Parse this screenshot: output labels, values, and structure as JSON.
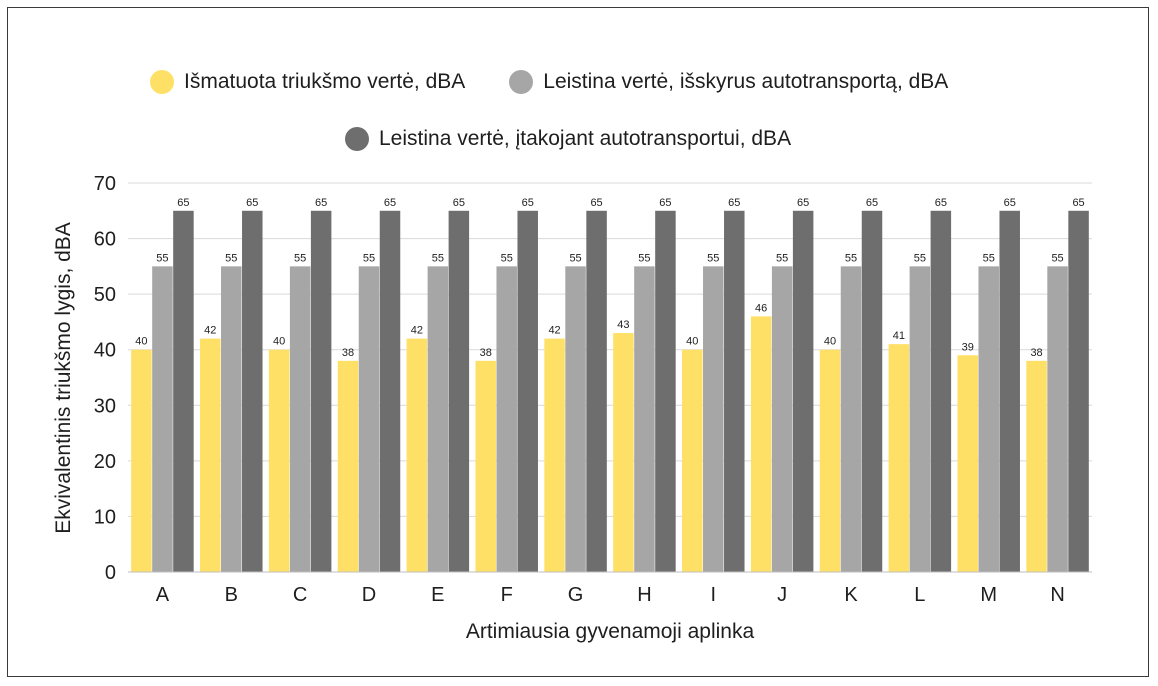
{
  "chart_data": {
    "type": "bar",
    "categories": [
      "A",
      "B",
      "C",
      "D",
      "E",
      "F",
      "G",
      "H",
      "I",
      "J",
      "K",
      "L",
      "M",
      "N"
    ],
    "series": [
      {
        "name": "Išmatuota triukšmo vertė, dBA",
        "color": "#ffe066",
        "values": [
          40,
          42,
          40,
          38,
          42,
          38,
          42,
          43,
          40,
          46,
          40,
          41,
          39,
          38
        ],
        "data_labels": [
          "40",
          "42",
          "40",
          "38",
          "42",
          "38",
          "42",
          "43",
          "40",
          "46",
          "40",
          "41",
          "39",
          "38"
        ]
      },
      {
        "name": "Leistina vertė, išskyrus autotransportą, dBA",
        "color": "#a6a6a6",
        "values": [
          55,
          55,
          55,
          55,
          55,
          55,
          55,
          55,
          55,
          55,
          55,
          55,
          55,
          55
        ],
        "data_labels": [
          "55",
          "55",
          "55",
          "55",
          "55",
          "55",
          "55",
          "55",
          "55",
          "55",
          "55",
          "55",
          "55",
          "55"
        ]
      },
      {
        "name": "Leistina vertė, įtakojant autotransportui, dBA",
        "color": "#6e6e6e",
        "values": [
          65,
          65,
          65,
          65,
          65,
          65,
          65,
          65,
          65,
          65,
          65,
          65,
          65,
          65
        ],
        "data_labels": [
          "65",
          "65",
          "65",
          "65",
          "65",
          "65",
          "65",
          "65",
          "65",
          "65",
          "65",
          "65",
          "65",
          "65"
        ]
      }
    ],
    "title": "",
    "xlabel": "Artimiausia gyvenamoji aplinka",
    "ylabel": "Ekvivalentinis triukšmo lygis, dBA",
    "ylim": [
      0,
      70
    ],
    "yticks": [
      "0",
      "10",
      "20",
      "30",
      "40",
      "50",
      "60",
      "70"
    ],
    "grid": true,
    "legend_position": "top"
  }
}
